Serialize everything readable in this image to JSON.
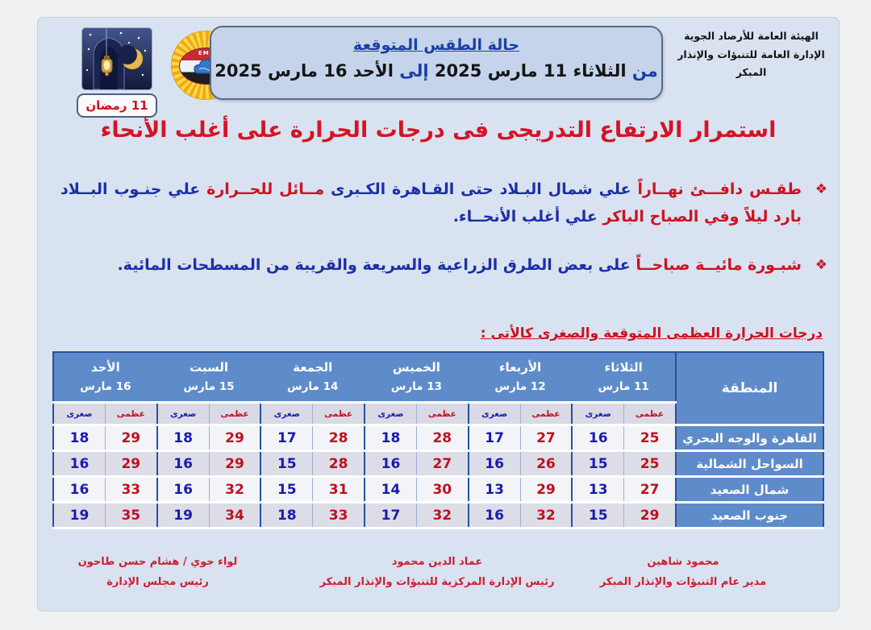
{
  "colors": {
    "doc_background": "#d9e2f0",
    "accent_blue": "#1b3fa8",
    "accent_red": "#cf1222",
    "table_header_blue": "#5e8cca",
    "max_red": "#c01020",
    "min_blue": "#1a1ab0"
  },
  "authority": {
    "line1": "الهيئة العامة للأرصاد الجوية",
    "line2": "الإدارة العامة للتنبؤات والإنذار المبكر"
  },
  "logo": {
    "text": "EMA"
  },
  "ramadan_badge": "11 رمضان",
  "header": {
    "title": "حالة الطقس المتوقعة",
    "from_label": "من",
    "from_text": "الثلاثاء 11 مارس 2025",
    "to_label": "إلى",
    "to_text": "الأحد 16 مارس 2025"
  },
  "headline": "استمرار الارتفاع التدريجى فى درجات الحرارة على أغلب الأنحاء",
  "bullets": [
    {
      "marker": "❖",
      "segments": [
        {
          "color": "red",
          "text": "طقـس دافـــئ نهــاراً "
        },
        {
          "color": "blue",
          "text": "علي شمال البـلاد حتى القـاهرة الكـبرى "
        },
        {
          "color": "red",
          "text": "مــائل للحــرارة "
        },
        {
          "color": "blue",
          "text": "علي جنـوب البــلاد "
        },
        {
          "color": "red",
          "text": "بارد ليلاً وفي الصباح الباكر "
        },
        {
          "color": "blue",
          "text": "علي أغلب الأنحــاء."
        }
      ]
    },
    {
      "marker": "❖",
      "segments": [
        {
          "color": "red",
          "text": "شبـورة مائيــة صباحــاً "
        },
        {
          "color": "blue",
          "text": "على بعض الطرق الزراعية والسريعة والقريبة من المسطحات المائية."
        }
      ]
    }
  ],
  "table": {
    "title": "درجات الحرارة العظمى المتوقعة والصغرى كالأتى :",
    "region_header": "المنطقة",
    "max_label": "عظمى",
    "min_label": "صغرى",
    "days": [
      {
        "name": "الثلاثاء",
        "date": "11 مارس"
      },
      {
        "name": "الأربعاء",
        "date": "12 مارس"
      },
      {
        "name": "الخميس",
        "date": "13 مارس"
      },
      {
        "name": "الجمعة",
        "date": "14 مارس"
      },
      {
        "name": "السبت",
        "date": "15 مارس"
      },
      {
        "name": "الأحد",
        "date": "16 مارس"
      }
    ],
    "rows": [
      {
        "region": "القاهرة والوجه البحري",
        "temps": [
          {
            "max": 25,
            "min": 16
          },
          {
            "max": 27,
            "min": 17
          },
          {
            "max": 28,
            "min": 18
          },
          {
            "max": 28,
            "min": 17
          },
          {
            "max": 29,
            "min": 18
          },
          {
            "max": 29,
            "min": 18
          }
        ]
      },
      {
        "region": "السواحل الشمالية",
        "temps": [
          {
            "max": 25,
            "min": 15
          },
          {
            "max": 26,
            "min": 16
          },
          {
            "max": 27,
            "min": 16
          },
          {
            "max": 28,
            "min": 15
          },
          {
            "max": 29,
            "min": 16
          },
          {
            "max": 29,
            "min": 16
          }
        ]
      },
      {
        "region": "شمال الصعيد",
        "temps": [
          {
            "max": 27,
            "min": 13
          },
          {
            "max": 29,
            "min": 13
          },
          {
            "max": 30,
            "min": 14
          },
          {
            "max": 31,
            "min": 15
          },
          {
            "max": 32,
            "min": 16
          },
          {
            "max": 33,
            "min": 16
          }
        ]
      },
      {
        "region": "جنوب الصعيد",
        "temps": [
          {
            "max": 29,
            "min": 15
          },
          {
            "max": 32,
            "min": 16
          },
          {
            "max": 32,
            "min": 17
          },
          {
            "max": 33,
            "min": 18
          },
          {
            "max": 34,
            "min": 19
          },
          {
            "max": 35,
            "min": 19
          }
        ]
      }
    ]
  },
  "signatures": [
    {
      "name": "محمود شاهين",
      "title": "مدير عام التنبؤات والإنذار المبكر"
    },
    {
      "name": "عماد الدين محمود",
      "title": "رئيس الإدارة المركزية للتنبؤات والإنذار المبكر"
    },
    {
      "name": "لواء جوي / هشام حسن طاحون",
      "title": "رئيس مجلس الإدارة"
    }
  ]
}
